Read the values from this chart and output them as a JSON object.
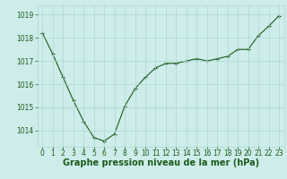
{
  "x": [
    0,
    1,
    2,
    3,
    4,
    5,
    6,
    7,
    8,
    9,
    10,
    11,
    12,
    13,
    14,
    15,
    16,
    17,
    18,
    19,
    20,
    21,
    22,
    23
  ],
  "y": [
    1018.2,
    1017.3,
    1016.3,
    1015.3,
    1014.4,
    1013.7,
    1013.55,
    1013.85,
    1015.05,
    1015.8,
    1016.3,
    1016.7,
    1016.9,
    1016.9,
    1017.0,
    1017.1,
    1017.0,
    1017.1,
    1017.2,
    1017.5,
    1017.5,
    1018.1,
    1018.5,
    1018.95
  ],
  "line_color": "#1a5c1a",
  "marker": "+",
  "marker_size": 3,
  "line_width": 0.8,
  "bg_color": "#ceecea",
  "grid_color": "#aad8d3",
  "tick_label_color": "#1a5c1a",
  "xlabel": "Graphe pression niveau de la mer (hPa)",
  "xlabel_color": "#1a5c1a",
  "xlabel_fontsize": 7,
  "tick_fontsize": 5.5,
  "ylim": [
    1013.3,
    1019.4
  ],
  "yticks": [
    1014,
    1015,
    1016,
    1017,
    1018,
    1019
  ],
  "xlim": [
    -0.5,
    23.5
  ],
  "xticks": [
    0,
    1,
    2,
    3,
    4,
    5,
    6,
    7,
    8,
    9,
    10,
    11,
    12,
    13,
    14,
    15,
    16,
    17,
    18,
    19,
    20,
    21,
    22,
    23
  ]
}
